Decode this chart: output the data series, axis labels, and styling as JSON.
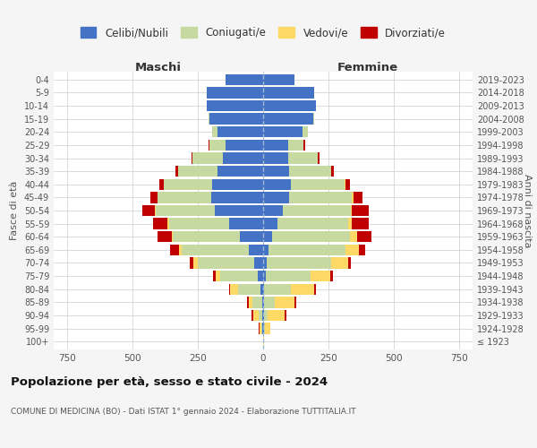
{
  "age_groups": [
    "100+",
    "95-99",
    "90-94",
    "85-89",
    "80-84",
    "75-79",
    "70-74",
    "65-69",
    "60-64",
    "55-59",
    "50-54",
    "45-49",
    "40-44",
    "35-39",
    "30-34",
    "25-29",
    "20-24",
    "15-19",
    "10-14",
    "5-9",
    "0-4"
  ],
  "birth_years": [
    "≤ 1923",
    "1924-1928",
    "1929-1933",
    "1934-1938",
    "1939-1943",
    "1944-1948",
    "1949-1953",
    "1954-1958",
    "1959-1963",
    "1964-1968",
    "1969-1973",
    "1974-1978",
    "1979-1983",
    "1984-1988",
    "1989-1993",
    "1994-1998",
    "1999-2003",
    "2004-2008",
    "2009-2013",
    "2014-2018",
    "2019-2023"
  ],
  "colors": {
    "celibi": "#4472c4",
    "coniugati": "#c5d9a0",
    "vedovi": "#ffd966",
    "divorziati": "#c00000"
  },
  "maschi": {
    "celibi": [
      0,
      2,
      3,
      5,
      10,
      20,
      35,
      55,
      90,
      130,
      185,
      200,
      195,
      175,
      155,
      145,
      175,
      205,
      215,
      215,
      145
    ],
    "coniugati": [
      0,
      5,
      15,
      35,
      85,
      145,
      215,
      255,
      255,
      230,
      225,
      205,
      185,
      150,
      115,
      60,
      20,
      5,
      0,
      0,
      0
    ],
    "vedovi": [
      0,
      5,
      20,
      15,
      30,
      15,
      15,
      10,
      5,
      5,
      5,
      0,
      0,
      0,
      0,
      0,
      0,
      0,
      0,
      0,
      0
    ],
    "divorziati": [
      0,
      5,
      5,
      5,
      5,
      10,
      15,
      35,
      55,
      55,
      45,
      25,
      15,
      10,
      5,
      5,
      0,
      0,
      0,
      0,
      0
    ]
  },
  "femmine": {
    "celibi": [
      0,
      2,
      3,
      5,
      5,
      10,
      15,
      20,
      35,
      55,
      75,
      100,
      105,
      100,
      95,
      95,
      150,
      190,
      200,
      195,
      120
    ],
    "coniugati": [
      0,
      5,
      15,
      40,
      100,
      170,
      245,
      295,
      295,
      270,
      260,
      240,
      205,
      160,
      115,
      60,
      20,
      5,
      0,
      0,
      0
    ],
    "vedovi": [
      5,
      20,
      65,
      75,
      90,
      75,
      65,
      50,
      30,
      15,
      5,
      5,
      5,
      0,
      0,
      0,
      0,
      0,
      0,
      0,
      0
    ],
    "divorziati": [
      0,
      0,
      5,
      5,
      5,
      10,
      10,
      25,
      55,
      65,
      65,
      35,
      15,
      10,
      5,
      5,
      0,
      0,
      0,
      0,
      0
    ]
  },
  "xlim": 800,
  "ylabel_left": "Fasce di età",
  "ylabel_right": "Anni di nascita",
  "title": "Popolazione per età, sesso e stato civile - 2024",
  "subtitle": "COMUNE DI MEDICINA (BO) - Dati ISTAT 1° gennaio 2024 - Elaborazione TUTTITALIA.IT",
  "legend_labels": [
    "Celibi/Nubili",
    "Coniugati/e",
    "Vedovi/e",
    "Divorziati/e"
  ],
  "maschi_label": "Maschi",
  "femmine_label": "Femmine",
  "bg_color": "#f5f5f5",
  "plot_bg": "#ffffff"
}
